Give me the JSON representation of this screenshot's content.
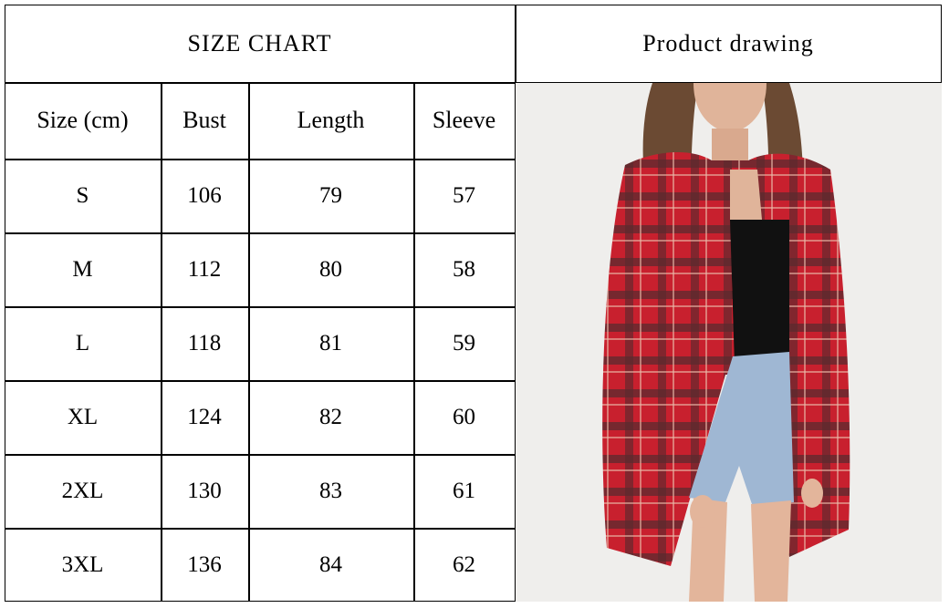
{
  "size_chart": {
    "title": "SIZE CHART",
    "headers": [
      "Size (cm)",
      "Bust",
      "Length",
      "Sleeve"
    ],
    "rows": [
      [
        "S",
        "106",
        "79",
        "57"
      ],
      [
        "M",
        "112",
        "80",
        "58"
      ],
      [
        "L",
        "118",
        "81",
        "59"
      ],
      [
        "XL",
        "124",
        "82",
        "60"
      ],
      [
        "2XL",
        "130",
        "83",
        "61"
      ],
      [
        "3XL",
        "136",
        "84",
        "62"
      ]
    ]
  },
  "product": {
    "title": "Product drawing",
    "image": "woman-wearing-red-plaid-shirt-photo",
    "shirt_color": "#c8202e"
  }
}
